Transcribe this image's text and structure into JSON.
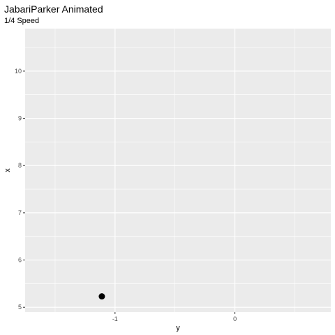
{
  "chart_data": {
    "type": "scatter",
    "title": "JabariParker Animated",
    "subtitle": "1/4 Speed",
    "xlabel": "y",
    "ylabel": "x",
    "xlim": [
      -1.75,
      0.8
    ],
    "ylim": [
      4.9,
      10.9
    ],
    "x_ticks": [
      -1,
      0
    ],
    "y_ticks": [
      5,
      6,
      7,
      8,
      9,
      10
    ],
    "x_tick_labels": [
      "-1",
      "0"
    ],
    "y_tick_labels": [
      "5",
      "6",
      "7",
      "8",
      "9",
      "10"
    ],
    "grid": true,
    "background": "#ebebeb",
    "point_color": "#000000",
    "points": [
      {
        "x": -1.11,
        "y": 5.23
      }
    ]
  }
}
